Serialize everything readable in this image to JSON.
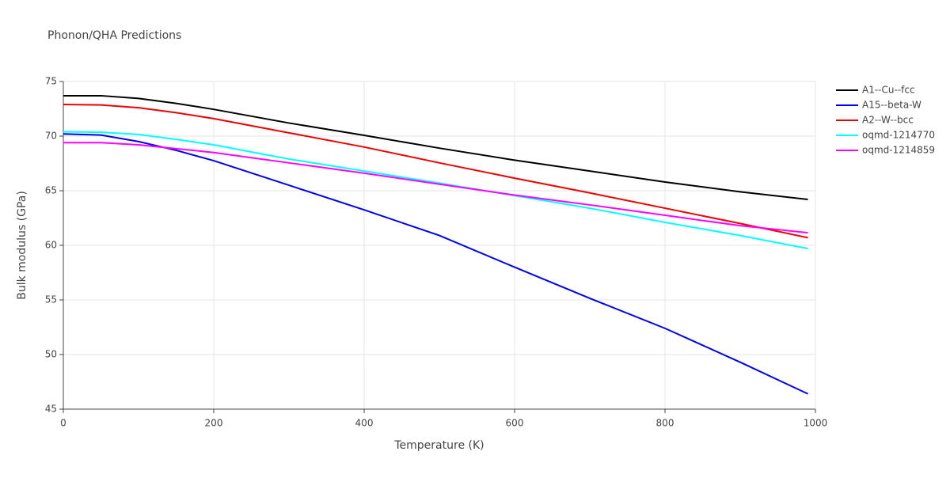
{
  "chart_data": {
    "type": "line",
    "title": "Phonon/QHA Predictions",
    "x_label": "Temperature (K)",
    "y_label": "Bulk modulus (GPa)",
    "x": [
      0,
      50,
      100,
      150,
      200,
      300,
      400,
      500,
      600,
      700,
      800,
      900,
      990
    ],
    "series": [
      {
        "name": "A1--Cu--fcc",
        "color": "#000000",
        "values": [
          73.7,
          73.7,
          73.45,
          73.0,
          72.45,
          71.2,
          70.07,
          68.9,
          67.8,
          66.8,
          65.8,
          64.9,
          64.2
        ]
      },
      {
        "name": "A15--beta-W",
        "color": "#0000ee",
        "values": [
          70.2,
          70.1,
          69.5,
          68.7,
          67.75,
          65.5,
          63.25,
          60.9,
          58.0,
          55.15,
          52.4,
          49.3,
          46.4
        ]
      },
      {
        "name": "A2--W--bcc",
        "color": "#ee0000",
        "values": [
          72.9,
          72.85,
          72.6,
          72.15,
          71.6,
          70.3,
          69.0,
          67.55,
          66.15,
          64.8,
          63.4,
          62.0,
          60.7
        ]
      },
      {
        "name": "oqmd-1214770",
        "color": "#00ffff",
        "values": [
          70.4,
          70.35,
          70.15,
          69.7,
          69.2,
          67.9,
          66.8,
          65.7,
          64.55,
          63.4,
          62.1,
          60.9,
          59.7
        ]
      },
      {
        "name": "oqmd-1214859",
        "color": "#ff00ff",
        "values": [
          69.4,
          69.4,
          69.2,
          68.85,
          68.5,
          67.55,
          66.6,
          65.6,
          64.6,
          63.7,
          62.75,
          61.8,
          61.15
        ]
      }
    ],
    "xlim": [
      0,
      1000
    ],
    "xticks": [
      0,
      200,
      400,
      600,
      800,
      1000
    ],
    "ylim": [
      45,
      75
    ],
    "yticks": [
      45,
      50,
      55,
      60,
      65,
      70,
      75
    ],
    "grid": true,
    "legend": "right"
  }
}
